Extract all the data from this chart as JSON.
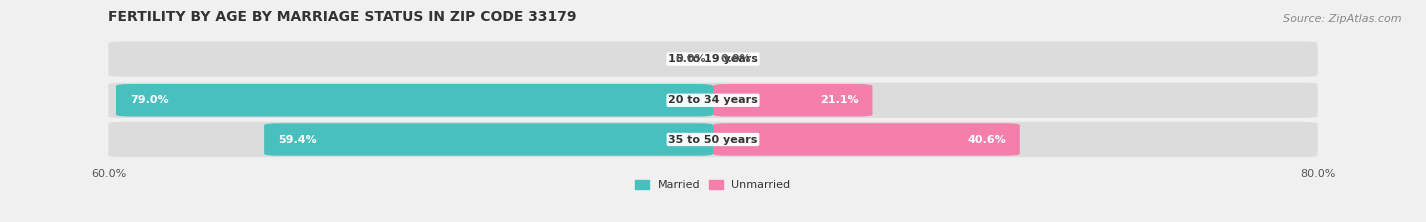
{
  "title": "FERTILITY BY AGE BY MARRIAGE STATUS IN ZIP CODE 33179",
  "source": "Source: ZipAtlas.com",
  "categories": [
    "15 to 19 years",
    "20 to 34 years",
    "35 to 50 years"
  ],
  "married_values": [
    0.0,
    79.0,
    59.4
  ],
  "unmarried_values": [
    0.0,
    21.1,
    40.6
  ],
  "married_color": "#47c0be",
  "unmarried_color": "#f47faa",
  "bar_bg_color": "#dcdcdc",
  "married_label": "Married",
  "unmarried_label": "Unmarried",
  "x_left_label": "60.0%",
  "x_right_label": "80.0%",
  "x_max": 80.0,
  "title_fontsize": 10,
  "source_fontsize": 8,
  "label_fontsize": 8,
  "cat_fontsize": 8,
  "tick_fontsize": 8,
  "background_color": "#f0f0f0"
}
